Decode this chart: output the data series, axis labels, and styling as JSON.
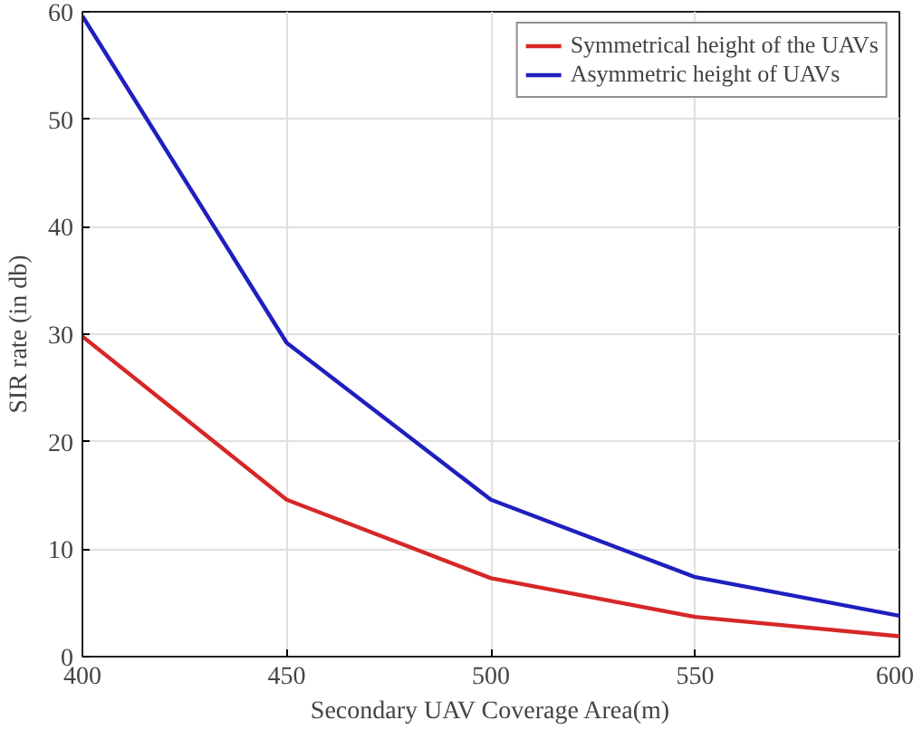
{
  "chart_data": {
    "type": "line",
    "xlabel": "Secondary UAV Coverage Area(m)",
    "ylabel": "SIR rate (in db)",
    "x": [
      400,
      450,
      500,
      550,
      600
    ],
    "series": [
      {
        "name": "Symmetrical height of the UAVs",
        "color": "#d62728",
        "values": [
          29.8,
          14.6,
          7.3,
          3.7,
          1.9
        ]
      },
      {
        "name": "Asymmetric height of UAVs",
        "color": "#1f1fbf",
        "values": [
          59.6,
          29.2,
          14.6,
          7.4,
          3.8
        ]
      }
    ],
    "xlim": [
      400,
      600
    ],
    "ylim": [
      0,
      60
    ],
    "xticks": [
      400,
      450,
      500,
      550,
      600
    ],
    "yticks": [
      0,
      10,
      20,
      30,
      40,
      50,
      60
    ],
    "grid": true,
    "legend": "top right",
    "marker": "none",
    "line_style": "solid"
  }
}
